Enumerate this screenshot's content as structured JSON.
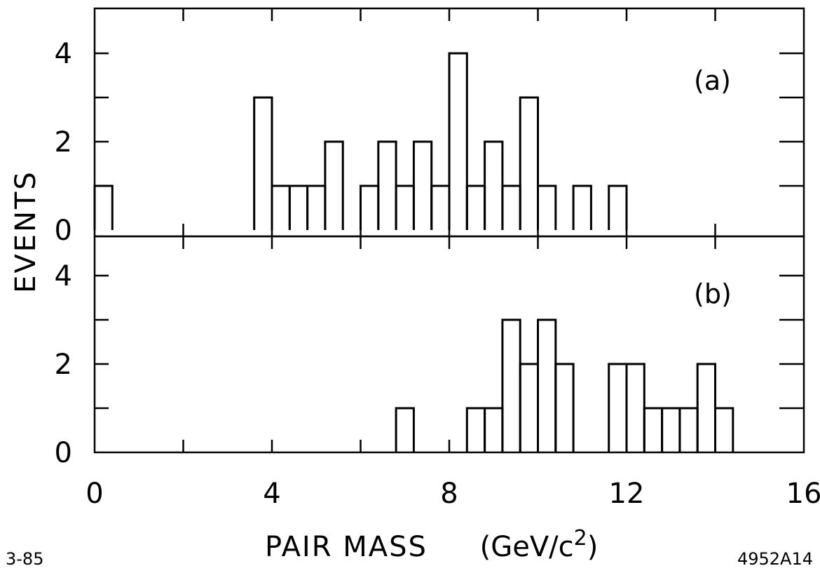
{
  "chart_data": {
    "type": "bar",
    "xlabel": "PAIR MASS",
    "xlabel_unit_prefix": "(GeV/c",
    "xlabel_unit_sup": "2",
    "xlabel_unit_suffix": ")",
    "ylabel": "EVENTS",
    "xlim": [
      0,
      16
    ],
    "x_ticklabels": [
      "0",
      "4",
      "8",
      "12",
      "16"
    ],
    "bin_width": 0.4,
    "panels": [
      {
        "label": "(a)",
        "ylim": [
          0,
          5
        ],
        "y_ticklabels": [
          "4",
          "2",
          "0"
        ],
        "bin_starts": [
          0.0,
          3.6,
          4.0,
          4.4,
          4.8,
          5.2,
          6.0,
          6.4,
          6.8,
          7.2,
          7.6,
          8.0,
          8.4,
          8.8,
          9.2,
          9.6,
          10.0,
          10.8,
          11.6
        ],
        "values": [
          1,
          3,
          1,
          1,
          1,
          2,
          1,
          2,
          1,
          2,
          1,
          4,
          1,
          2,
          1,
          3,
          1,
          1,
          1
        ]
      },
      {
        "label": "(b)",
        "ylim": [
          0,
          5
        ],
        "y_ticklabels": [
          "4",
          "2",
          "0"
        ],
        "bin_starts": [
          6.8,
          8.4,
          8.8,
          9.2,
          9.6,
          10.0,
          10.4,
          11.6,
          12.0,
          12.4,
          12.8,
          13.2,
          13.6,
          14.0
        ],
        "values": [
          1,
          1,
          1,
          3,
          2,
          3,
          2,
          2,
          2,
          1,
          1,
          1,
          2,
          1
        ]
      }
    ]
  },
  "footer": {
    "left_code": "3-85",
    "right_code": "4952A14"
  }
}
